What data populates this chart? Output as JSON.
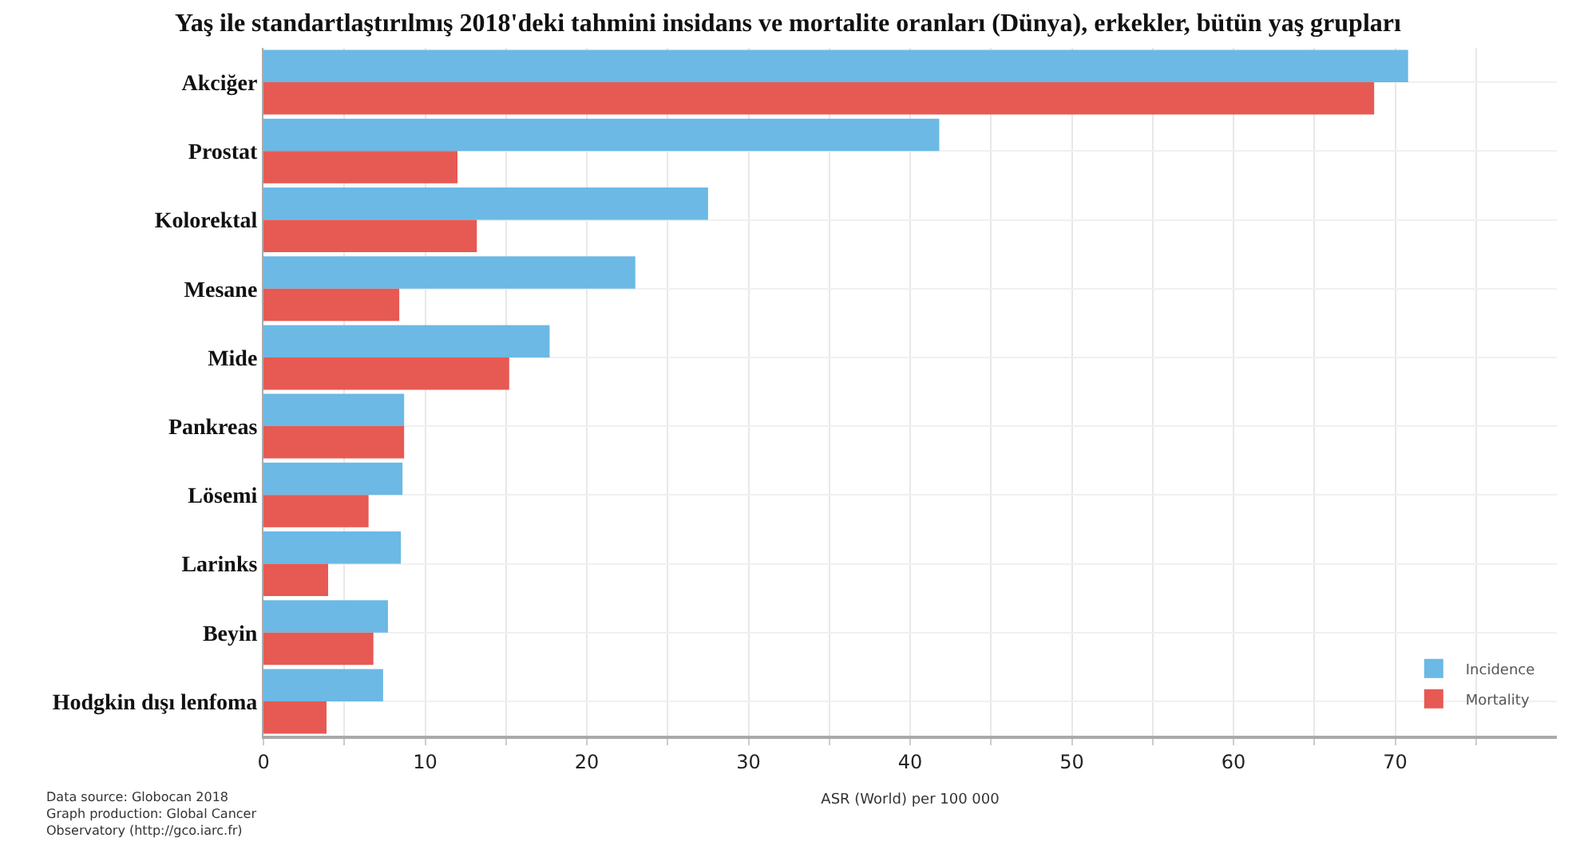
{
  "chart_data": {
    "type": "bar",
    "orientation": "horizontal",
    "title": "Yaş ile standartlaştırılmış 2018'deki tahmini insidans ve mortalite oranları (Dünya), erkekler, bütün yaş grupları",
    "xlabel": "ASR (World) per 100 000",
    "categories": [
      "Akciğer",
      "Prostat",
      "Kolorektal",
      "Mesane",
      "Mide",
      "Pankreas",
      "Lösemi",
      "Larinks",
      "Beyin",
      "Hodgkin dışı lenfoma"
    ],
    "series": [
      {
        "name": "Incidence",
        "color": "#6bb9e4",
        "values": [
          70.8,
          41.8,
          27.5,
          23.0,
          17.7,
          8.7,
          8.6,
          8.5,
          7.7,
          7.4
        ]
      },
      {
        "name": "Mortality",
        "color": "#e65a53",
        "values": [
          68.7,
          12.0,
          13.2,
          8.4,
          15.2,
          8.7,
          6.5,
          4.0,
          6.8,
          3.9
        ]
      }
    ],
    "xlim": [
      0,
      80
    ],
    "xticks": [
      0,
      {
        "value": 5,
        "label": null
      },
      10,
      {
        "value": 15,
        "label": null
      },
      20,
      {
        "value": 25,
        "label": null
      },
      30,
      {
        "value": 35,
        "label": null
      },
      40,
      {
        "value": 45,
        "label": null
      },
      50,
      {
        "value": 55,
        "label": null
      },
      60,
      {
        "value": 65,
        "label": null
      },
      70,
      {
        "value": 75,
        "label": null
      }
    ],
    "grid": true,
    "legend": "bottom right",
    "annotations": [
      "Data source: Globocan 2018\nGraph production: Global Cancer\nObservatory (http://gco.iarc.fr)"
    ]
  }
}
